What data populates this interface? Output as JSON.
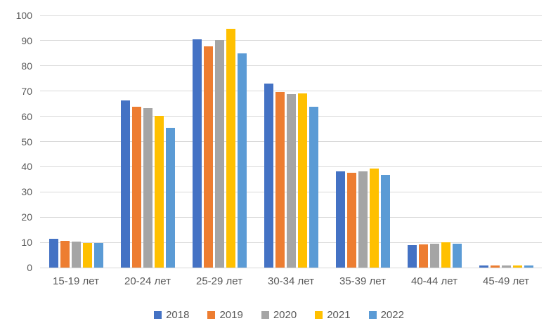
{
  "colors": {
    "background": "#ffffff",
    "gridline": "#d9d9d9",
    "axis_text": "#595959"
  },
  "chart_data": {
    "type": "bar",
    "title": "",
    "xlabel": "",
    "ylabel": "",
    "categories": [
      "15-19 лет",
      "20-24 лет",
      "25-29 лет",
      "30-34 лет",
      "35-39 лет",
      "40-44 лет",
      "45-49 лет"
    ],
    "series": [
      {
        "name": "2018",
        "color": "#4472c4",
        "values": [
          11.3,
          66.4,
          90.5,
          73.1,
          38.2,
          8.9,
          0.8
        ]
      },
      {
        "name": "2019",
        "color": "#ed7d31",
        "values": [
          10.5,
          63.9,
          87.7,
          69.6,
          37.6,
          9.3,
          0.8
        ]
      },
      {
        "name": "2020",
        "color": "#a5a5a5",
        "values": [
          10.4,
          63.1,
          90.2,
          68.7,
          38.2,
          9.6,
          0.8
        ]
      },
      {
        "name": "2021",
        "color": "#ffc000",
        "values": [
          9.8,
          60.3,
          94.7,
          69.2,
          39.4,
          9.9,
          0.8
        ]
      },
      {
        "name": "2022",
        "color": "#5b9bd5",
        "values": [
          9.7,
          55.5,
          85.1,
          63.7,
          36.8,
          9.5,
          0.8
        ]
      }
    ],
    "ylim": [
      0,
      100
    ],
    "yticks": [
      0,
      10,
      20,
      30,
      40,
      50,
      60,
      70,
      80,
      90,
      100
    ],
    "grid": "horizontal",
    "legend_position": "bottom"
  }
}
